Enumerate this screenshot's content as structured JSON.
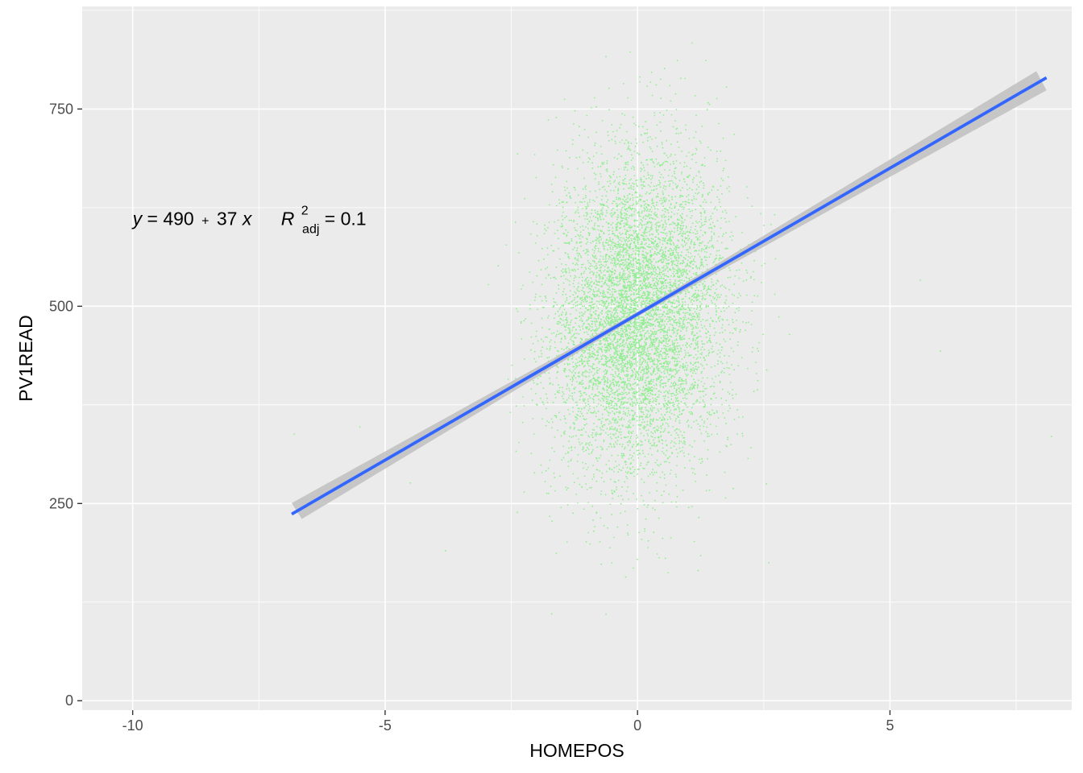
{
  "chart_data": {
    "type": "scatter",
    "title": "",
    "xlabel": "HOMEPOS",
    "ylabel": "PV1READ",
    "xlim": [
      -11.0,
      8.6
    ],
    "ylim": [
      -12,
      880
    ],
    "x_ticks": [
      -10,
      -5,
      0,
      5
    ],
    "x_tick_labels": [
      "-10",
      "-5",
      "0",
      "5"
    ],
    "y_ticks": [
      0,
      250,
      500,
      750
    ],
    "y_tick_labels": [
      "0",
      "250",
      "500",
      "750"
    ],
    "grid": true,
    "legend": "none",
    "points": {
      "color": "#90ee90",
      "center_x": 0.0,
      "sd_x": 0.85,
      "mean_y": 490,
      "sd_y": 100,
      "x_range": [
        -6.9,
        8.2
      ],
      "y_range": [
        40,
        875
      ]
    },
    "regression": {
      "intercept": 490,
      "slope": 37,
      "x_range": [
        -6.85,
        8.1
      ],
      "line_color": "#3366ff",
      "band_color": "#bfbfbf"
    },
    "annotation": {
      "x": -10,
      "y": 600,
      "parts": {
        "y_var": "y",
        "eq_mid": " = 490",
        "plus": "+",
        "slope_text": "37 ",
        "x_var": "x",
        "r_letter": "R",
        "r_sup": "2",
        "r_sub": "adj",
        "r_value": " = 0.1"
      }
    }
  }
}
